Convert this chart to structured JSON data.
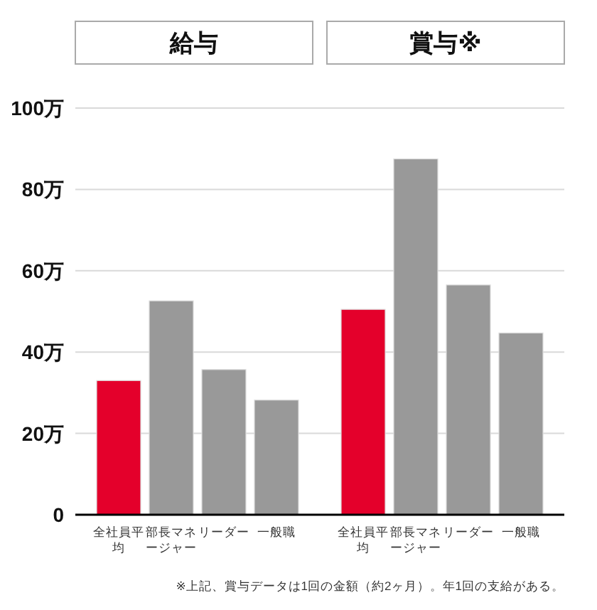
{
  "chart_data": [
    {
      "type": "bar",
      "title": "給与",
      "categories": [
        "全社員平均",
        "部長マネージャー",
        "リーダー",
        "一般職"
      ],
      "values": [
        33,
        52.6,
        35.7,
        28.2
      ],
      "colors": [
        "#e4002b",
        "#999999",
        "#999999",
        "#999999"
      ],
      "ylim": [
        0,
        100
      ],
      "yticks": [
        {
          "value": 0,
          "label": "0"
        },
        {
          "value": 20,
          "label": "20万"
        },
        {
          "value": 40,
          "label": "40万"
        },
        {
          "value": 60,
          "label": "60万"
        },
        {
          "value": 80,
          "label": "80万"
        },
        {
          "value": 100,
          "label": "100万"
        }
      ],
      "grid": "y"
    },
    {
      "type": "bar",
      "title": "賞与※",
      "categories": [
        "全社員平均",
        "部長マネージャー",
        "リーダー",
        "一般職"
      ],
      "values": [
        50.5,
        87.5,
        56.5,
        44.7
      ],
      "colors": [
        "#e4002b",
        "#999999",
        "#999999",
        "#999999"
      ],
      "ylim": [
        0,
        100
      ],
      "yticks": [
        0,
        20,
        40,
        60,
        80,
        100
      ],
      "grid": "y",
      "tick_labels": "x",
      "annotations": [
        "※上記、賞与データは1回の金額（約2ヶ月）。年1回の支給がある。"
      ]
    }
  ]
}
